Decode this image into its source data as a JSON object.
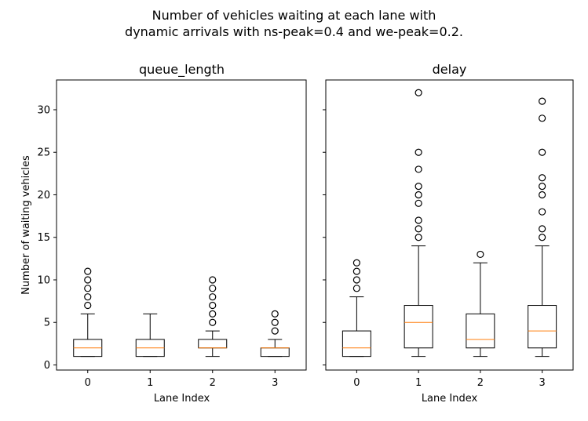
{
  "figure": {
    "suptitle_line1": "Number of vehicles waiting at each lane with",
    "suptitle_line2": "dynamic arrivals with ns-peak=0.4 and we-peak=0.2."
  },
  "colors": {
    "box": "#000000",
    "median": "#ff7f0e",
    "flier": "#000000",
    "background": "#ffffff"
  },
  "chart_data": [
    {
      "type": "box",
      "title": "queue_length",
      "xlabel": "Lane Index",
      "ylabel": "Number of waiting vehicles",
      "categories": [
        "0",
        "1",
        "2",
        "3"
      ],
      "ylim": [
        -0.6,
        33.5
      ],
      "yticks": [
        0,
        5,
        10,
        15,
        20,
        25,
        30
      ],
      "boxes": [
        {
          "whislo": 1,
          "q1": 1,
          "med": 2,
          "q3": 3,
          "whishi": 6,
          "fliers": [
            7,
            8,
            9,
            10,
            11
          ]
        },
        {
          "whislo": 1,
          "q1": 1,
          "med": 2,
          "q3": 3,
          "whishi": 6,
          "fliers": []
        },
        {
          "whislo": 1,
          "q1": 2,
          "med": 2,
          "q3": 3,
          "whishi": 4,
          "fliers": [
            5,
            6,
            7,
            8,
            9,
            10
          ]
        },
        {
          "whislo": 1,
          "q1": 1,
          "med": 2,
          "q3": 2,
          "whishi": 3,
          "fliers": [
            4,
            5,
            6
          ]
        }
      ]
    },
    {
      "type": "box",
      "title": "delay",
      "xlabel": "Lane Index",
      "ylabel": "",
      "categories": [
        "0",
        "1",
        "2",
        "3"
      ],
      "ylim": [
        -0.6,
        33.5
      ],
      "yticks": [
        0,
        5,
        10,
        15,
        20,
        25,
        30
      ],
      "boxes": [
        {
          "whislo": 1,
          "q1": 1,
          "med": 2,
          "q3": 4,
          "whishi": 8,
          "fliers": [
            9,
            10,
            11,
            12
          ]
        },
        {
          "whislo": 1,
          "q1": 2,
          "med": 5,
          "q3": 7,
          "whishi": 14,
          "fliers": [
            15,
            16,
            17,
            19,
            20,
            21,
            23,
            25,
            32
          ]
        },
        {
          "whislo": 1,
          "q1": 2,
          "med": 3,
          "q3": 6,
          "whishi": 12,
          "fliers": [
            13
          ]
        },
        {
          "whislo": 1,
          "q1": 2,
          "med": 4,
          "q3": 7,
          "whishi": 14,
          "fliers": [
            15,
            16,
            18,
            20,
            21,
            22,
            25,
            29,
            31
          ]
        }
      ]
    }
  ]
}
